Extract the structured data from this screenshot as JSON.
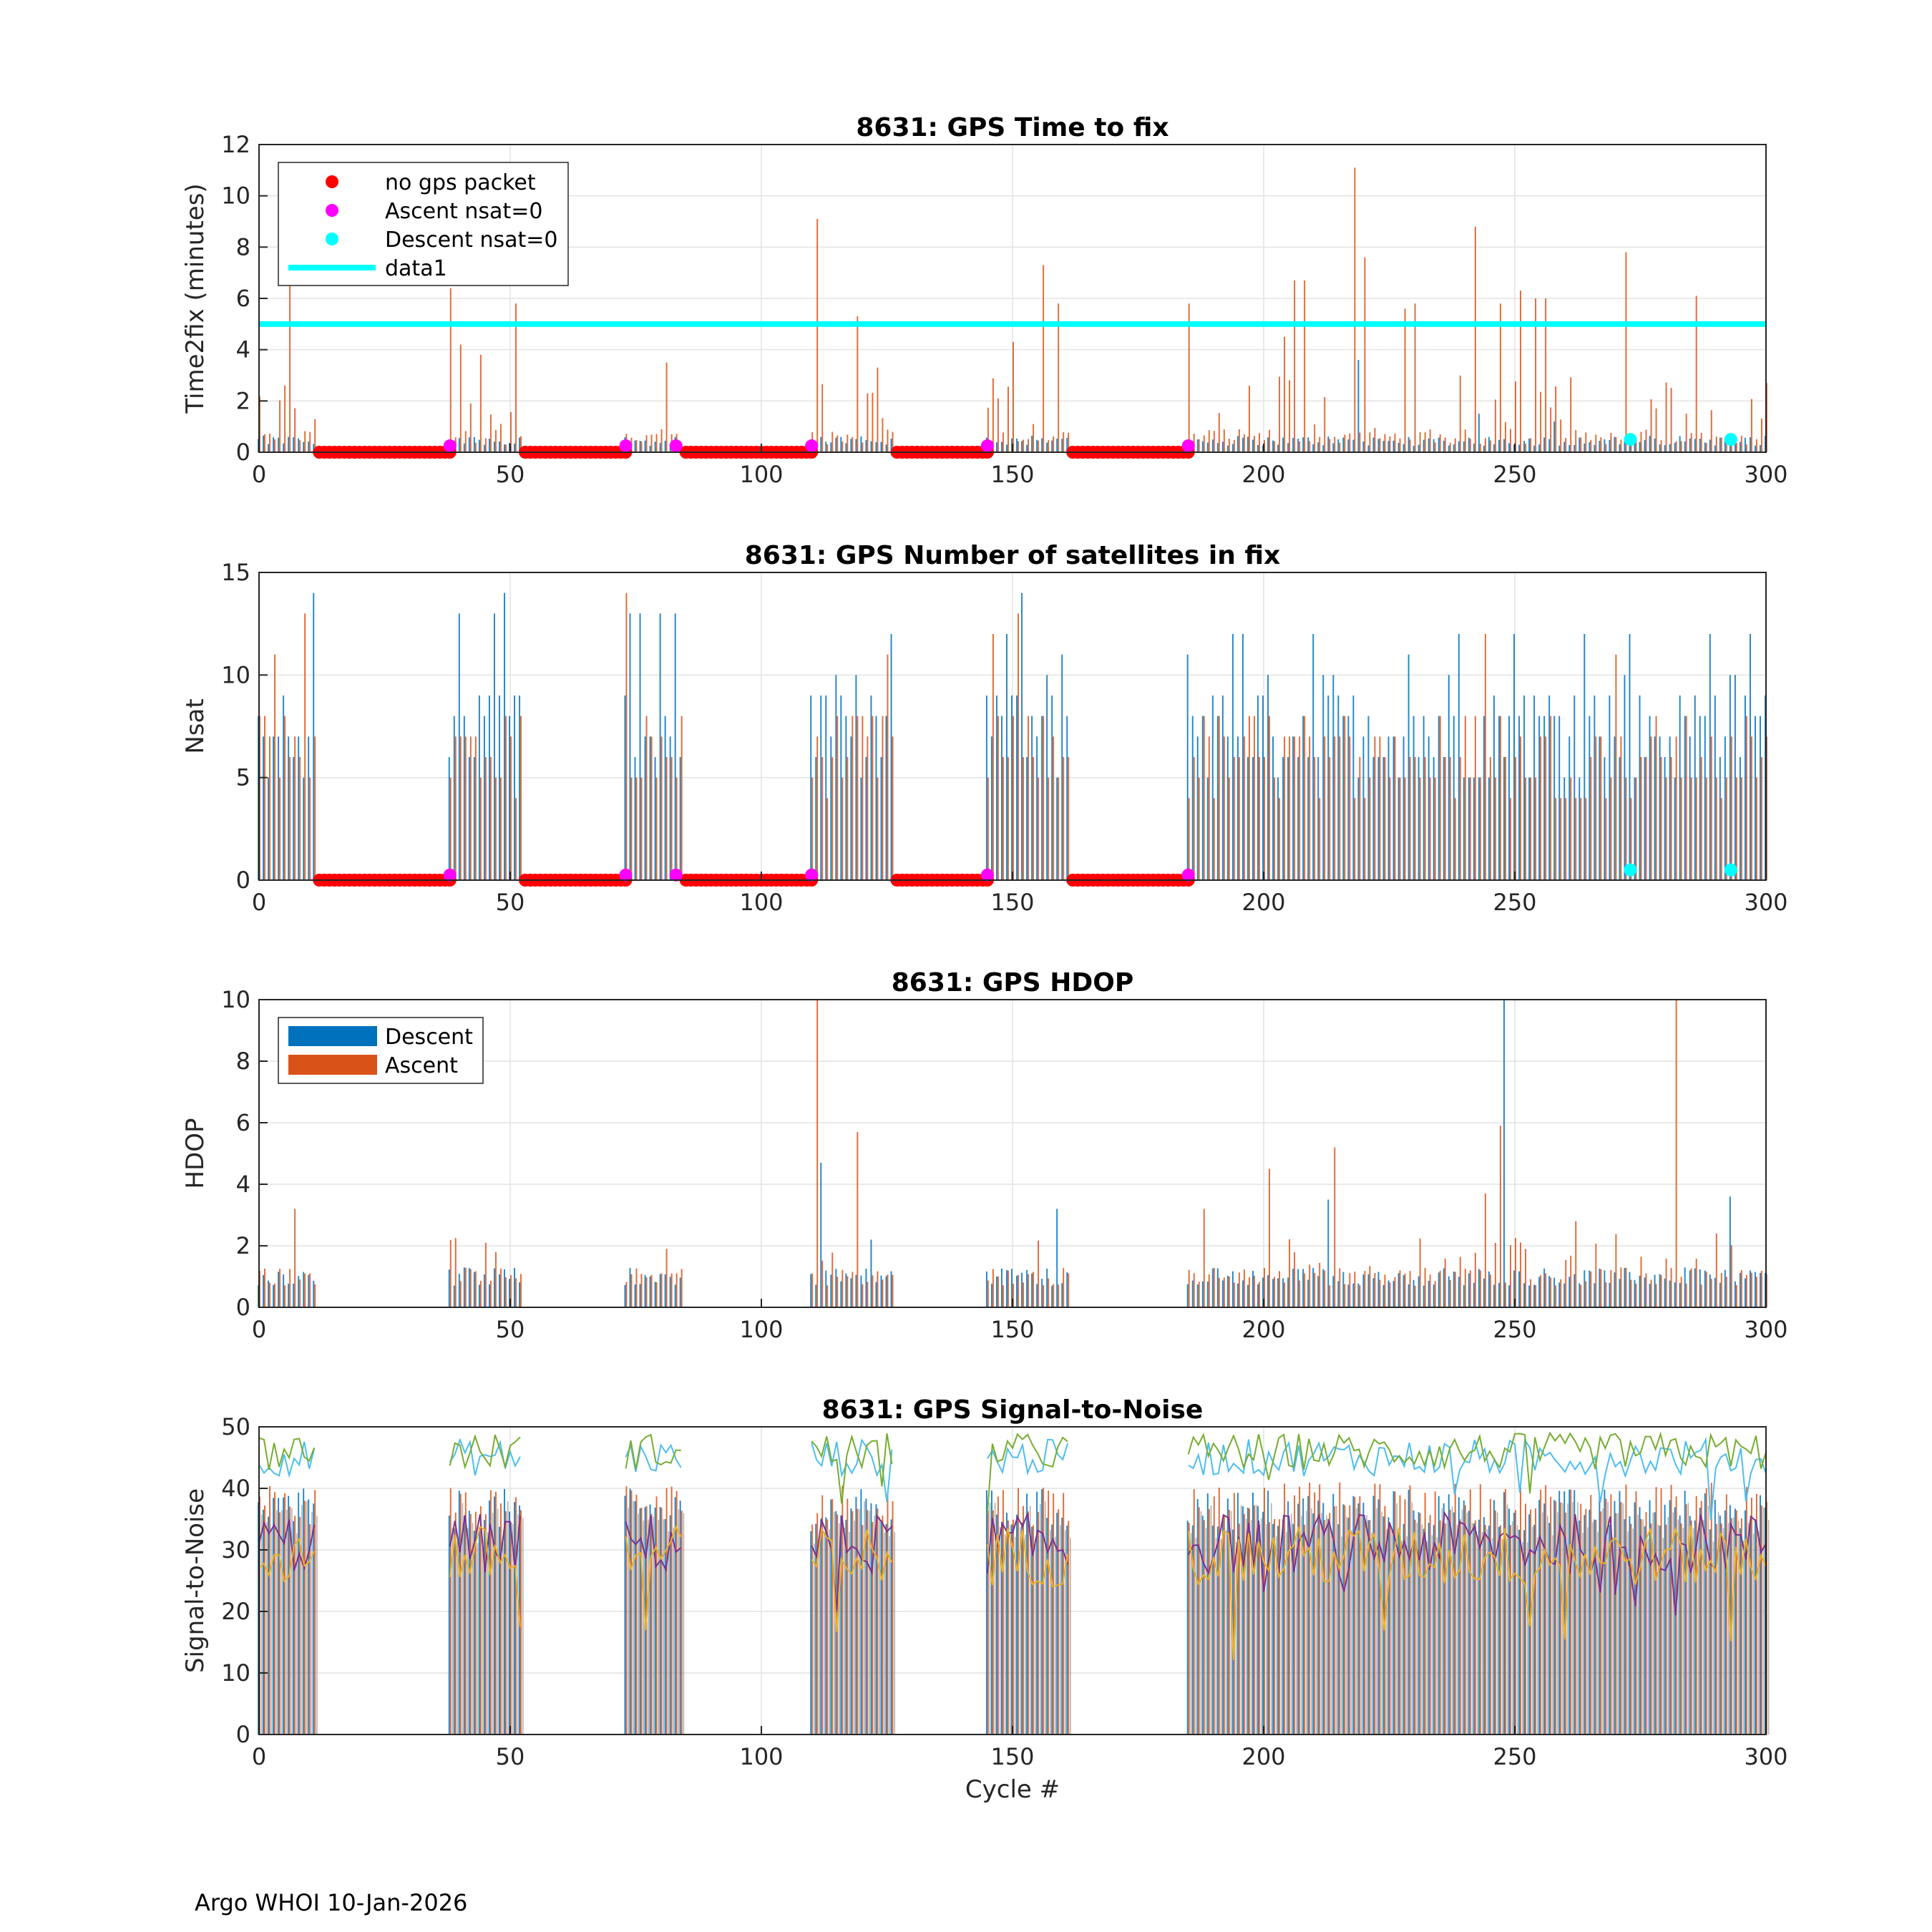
{
  "footer": "Argo WHOI 10-Jan-2026",
  "colors": {
    "descent": "#0072BD",
    "ascent": "#D95319",
    "no_gps": "#FF0000",
    "ascent_nsat0": "#FF00FF",
    "descent_nsat0": "#00FFFF",
    "threshold": "#00FFFF",
    "snr_lines": [
      "#4DBEEE",
      "#77AC30",
      "#7E2F8E",
      "#EDB120"
    ]
  },
  "chart_data": [
    {
      "type": "bar",
      "title": "8631: GPS Time to fix",
      "xlabel": "",
      "ylabel": "Time2fix (minutes)",
      "xlim": [
        0,
        300
      ],
      "ylim": [
        0,
        12
      ],
      "xticks": [
        "0",
        "50",
        "100",
        "150",
        "200",
        "250",
        "300"
      ],
      "yticks": [
        "0",
        "2",
        "4",
        "6",
        "8",
        "10",
        "12"
      ],
      "grid": true,
      "legend": {
        "placement": "top-left",
        "entries": [
          "no gps packet",
          "Ascent nsat=0",
          "Descent nsat=0",
          "data1"
        ]
      },
      "threshold_line": {
        "name": "data1",
        "y": 5
      },
      "no_gps_ranges": [
        [
          12,
          38
        ],
        [
          53,
          73
        ],
        [
          85,
          110
        ],
        [
          127,
          145
        ],
        [
          162,
          185
        ]
      ],
      "ascent_nsat0_cycles": [
        38,
        73,
        83,
        110,
        145,
        185
      ],
      "descent_nsat0_cycles": [
        273,
        293
      ],
      "zero_marker_y": 0.25,
      "series": [
        {
          "name": "Descent",
          "peaks": [
            [
              219,
              3.6
            ],
            [
              243,
              1.5
            ],
            [
              258,
              1.2
            ],
            [
              131,
              0.9
            ]
          ],
          "base": 0.3
        },
        {
          "name": "Ascent",
          "peaks": [
            [
              6,
              6.5
            ],
            [
              38,
              6.4
            ],
            [
              40,
              4.2
            ],
            [
              44,
              3.8
            ],
            [
              51,
              5.8
            ],
            [
              81,
              3.5
            ],
            [
              111,
              9.1
            ],
            [
              119,
              5.3
            ],
            [
              123,
              3.3
            ],
            [
              150,
              4.3
            ],
            [
              156,
              7.3
            ],
            [
              159,
              5.8
            ],
            [
              185,
              5.8
            ],
            [
              204,
              4.5
            ],
            [
              206,
              6.7
            ],
            [
              208,
              6.7
            ],
            [
              218,
              11.1
            ],
            [
              220,
              7.6
            ],
            [
              228,
              5.6
            ],
            [
              230,
              5.8
            ],
            [
              242,
              8.8
            ],
            [
              247,
              5.8
            ],
            [
              251,
              6.3
            ],
            [
              254,
              6.0
            ],
            [
              256,
              6.0
            ],
            [
              272,
              7.8
            ],
            [
              286,
              6.1
            ],
            [
              300,
              2.7
            ]
          ],
          "base": 0.8
        }
      ]
    },
    {
      "type": "bar",
      "title": "8631: GPS Number of satellites in fix",
      "xlabel": "",
      "ylabel": "Nsat",
      "xlim": [
        0,
        300
      ],
      "ylim": [
        0,
        15
      ],
      "xticks": [
        "0",
        "50",
        "100",
        "150",
        "200",
        "250",
        "300"
      ],
      "yticks": [
        "0",
        "5",
        "10",
        "15"
      ],
      "grid": true,
      "no_gps_ranges": [
        [
          12,
          38
        ],
        [
          53,
          73
        ],
        [
          85,
          110
        ],
        [
          127,
          145
        ],
        [
          162,
          185
        ]
      ],
      "ascent_nsat0_cycles": [
        38,
        73,
        83,
        110,
        145,
        185
      ],
      "descent_nsat0_cycles": [
        273,
        293
      ],
      "zero_marker_y": 0.25,
      "series": [
        {
          "name": "Descent",
          "peaks": [
            [
              11,
              14
            ],
            [
              40,
              13
            ],
            [
              47,
              13
            ],
            [
              49,
              14
            ],
            [
              74,
              13
            ],
            [
              76,
              13
            ],
            [
              80,
              13
            ],
            [
              83,
              13
            ],
            [
              126,
              12
            ],
            [
              149,
              12
            ],
            [
              152,
              14
            ],
            [
              160,
              11
            ],
            [
              185,
              11
            ],
            [
              194,
              12
            ],
            [
              196,
              12
            ],
            [
              210,
              12
            ],
            [
              229,
              11
            ],
            [
              239,
              12
            ],
            [
              250,
              12
            ],
            [
              264,
              12
            ],
            [
              273,
              12
            ],
            [
              289,
              12
            ],
            [
              297,
              12
            ]
          ],
          "base": 7
        },
        {
          "name": "Ascent",
          "peaks": [
            [
              3,
              11
            ],
            [
              9,
              13
            ],
            [
              73,
              14
            ],
            [
              125,
              11
            ],
            [
              146,
              12
            ],
            [
              151,
              13
            ],
            [
              244,
              12
            ],
            [
              270,
              11
            ]
          ],
          "base": 6
        }
      ]
    },
    {
      "type": "bar",
      "title": "8631: GPS HDOP",
      "xlabel": "",
      "ylabel": "HDOP",
      "xlim": [
        0,
        300
      ],
      "ylim": [
        0,
        10
      ],
      "xticks": [
        "0",
        "50",
        "100",
        "150",
        "200",
        "250",
        "300"
      ],
      "yticks": [
        "0",
        "2",
        "4",
        "6",
        "8",
        "10"
      ],
      "grid": true,
      "legend": {
        "placement": "top-left",
        "entries": [
          "Descent",
          "Ascent"
        ]
      },
      "series": [
        {
          "name": "Descent",
          "peaks": [
            [
              112,
              4.7
            ],
            [
              122,
              2.2
            ],
            [
              159,
              3.2
            ],
            [
              213,
              3.5
            ],
            [
              248,
              10.0
            ],
            [
              293,
              3.6
            ]
          ],
          "base": 0.9
        },
        {
          "name": "Ascent",
          "peaks": [
            [
              7,
              3.2
            ],
            [
              45,
              2.1
            ],
            [
              81,
              1.9
            ],
            [
              111,
              10.0
            ],
            [
              119,
              5.7
            ],
            [
              188,
              3.2
            ],
            [
              201,
              4.5
            ],
            [
              214,
              5.2
            ],
            [
              244,
              3.7
            ],
            [
              247,
              5.9
            ],
            [
              262,
              2.8
            ],
            [
              282,
              10.0
            ]
          ],
          "base": 0.9
        }
      ]
    },
    {
      "type": "bar",
      "title": "8631: GPS Signal-to-Noise",
      "xlabel": "Cycle #",
      "ylabel": "Signal-to-Noise",
      "xlim": [
        0,
        300
      ],
      "ylim": [
        0,
        50
      ],
      "xticks": [
        "0",
        "50",
        "100",
        "150",
        "200",
        "250",
        "300"
      ],
      "yticks": [
        "0",
        "10",
        "20",
        "30",
        "40",
        "50"
      ],
      "grid": true,
      "series": [
        {
          "name": "Descent",
          "base": 38
        },
        {
          "name": "Ascent",
          "base": 39
        }
      ],
      "lines": [
        {
          "name": "SNR max (light blue)",
          "mean": 45,
          "spread": 3
        },
        {
          "name": "SNR max (green)",
          "mean": 46,
          "spread": 3
        },
        {
          "name": "SNR mean (purple)",
          "mean": 31,
          "spread": 5
        },
        {
          "name": "SNR mean (yellow)",
          "mean": 29,
          "spread": 5
        }
      ]
    }
  ]
}
